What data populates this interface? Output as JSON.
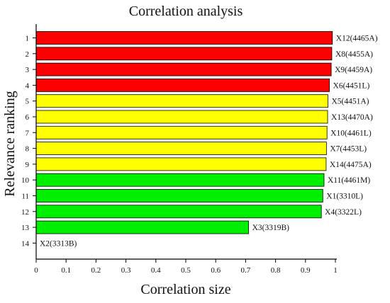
{
  "chart_data": {
    "type": "bar",
    "orientation": "horizontal",
    "title": "Correlation analysis",
    "xlabel": "Correlation size",
    "ylabel": "Relevance ranking",
    "xlim": [
      0,
      1
    ],
    "x_ticks": [
      "0",
      "0.1",
      "0.2",
      "0.3",
      "0.4",
      "0.5",
      "0.6",
      "0.7",
      "0.8",
      "0.9",
      "1"
    ],
    "categories": [
      "1",
      "2",
      "3",
      "4",
      "5",
      "6",
      "7",
      "8",
      "9",
      "10",
      "11",
      "12",
      "13",
      "14"
    ],
    "bar_labels": [
      "X12(4465A)",
      "X8(4455A)",
      "X9(4459A)",
      "X6(4451L)",
      "X5(4451A)",
      "X13(4470A)",
      "X10(4461L)",
      "X7(4453L)",
      "X14(4475A)",
      "X11(4461M)",
      "X1(3310L)",
      "X4(3322L)",
      "X3(3319B)",
      "X2(3313B)"
    ],
    "values": [
      0.99,
      0.988,
      0.986,
      0.98,
      0.975,
      0.974,
      0.972,
      0.97,
      0.969,
      0.962,
      0.958,
      0.953,
      0.71,
      0
    ],
    "colors": [
      "#ff0000",
      "#ff0000",
      "#ff0000",
      "#ff0000",
      "#ffff00",
      "#ffff00",
      "#ffff00",
      "#ffff00",
      "#ffff00",
      "#00ee00",
      "#00ee00",
      "#00ee00",
      "#00ee00",
      "#00ee00"
    ],
    "grid": false,
    "legend": "none"
  }
}
